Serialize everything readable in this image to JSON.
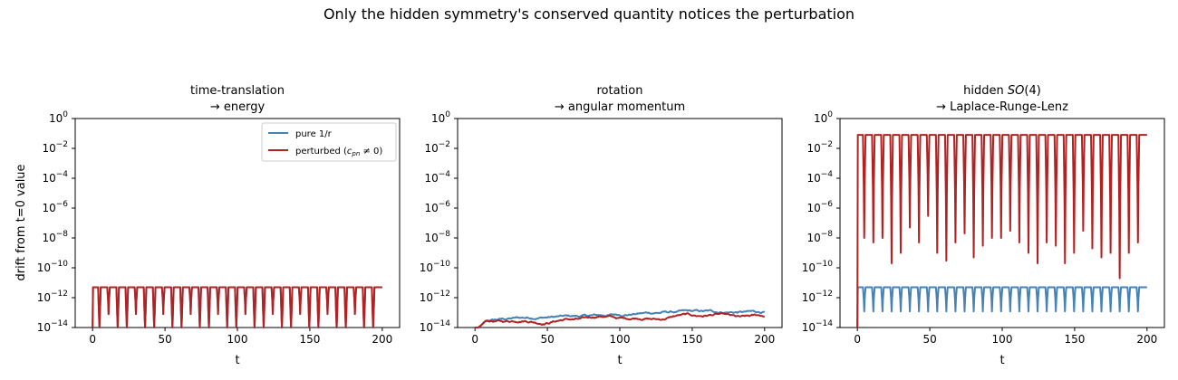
{
  "title": "Only the hidden symmetry's conserved quantity notices the perturbation",
  "colors": {
    "pure": "#4682b4",
    "perturbed": "#b22222"
  },
  "chart_data": [
    {
      "type": "line",
      "title_line1": "time-translation",
      "title_line2": "→ energy",
      "xlabel": "t",
      "ylabel": "drift from t=0 value",
      "yscale": "log",
      "xlim": [
        -12,
        212
      ],
      "ylim": [
        1e-14,
        1
      ],
      "xticks": [
        "0",
        "50",
        "100",
        "150",
        "200"
      ],
      "yticks": [
        "10^0",
        "10^-2",
        "10^-4",
        "10^-6",
        "10^-8",
        "10^-10",
        "10^-12",
        "10^-14"
      ],
      "legend": {
        "placement": "top-right",
        "entries": [
          "pure 1/r",
          "perturbed (c_pn ≠ 0)"
        ]
      },
      "series": [
        {
          "name": "pure 1/r",
          "plateau": 5e-12,
          "dips_to": 1e-14,
          "period": 6.3,
          "t_range": [
            0,
            200
          ]
        },
        {
          "name": "perturbed (c_pn ≠ 0)",
          "plateau": 5e-12,
          "dips_to": 1e-14,
          "period": 6.3,
          "t_range": [
            0,
            200
          ]
        }
      ]
    },
    {
      "type": "line",
      "title_line1": "rotation",
      "title_line2": "→ angular momentum",
      "xlabel": "t",
      "ylabel": "",
      "yscale": "log",
      "xlim": [
        -12,
        212
      ],
      "ylim": [
        1e-14,
        1
      ],
      "xticks": [
        "0",
        "50",
        "100",
        "150",
        "200"
      ],
      "yticks": [
        "10^0",
        "10^-2",
        "10^-4",
        "10^-6",
        "10^-8",
        "10^-10",
        "10^-12",
        "10^-14"
      ],
      "series": [
        {
          "name": "pure 1/r",
          "noise_walk": {
            "start": 1e-14,
            "end": 1.2e-13
          }
        },
        {
          "name": "perturbed (c_pn ≠ 0)",
          "noise_walk": {
            "start": 1e-14,
            "end": 6e-14
          }
        }
      ]
    },
    {
      "type": "line",
      "title_line1": "hidden SO(4)",
      "title_line2": "→ Laplace-Runge-Lenz",
      "xlabel": "t",
      "ylabel": "",
      "yscale": "log",
      "xlim": [
        -12,
        212
      ],
      "ylim": [
        1e-14,
        1
      ],
      "xticks": [
        "0",
        "50",
        "100",
        "150",
        "200"
      ],
      "yticks": [
        "10^0",
        "10^-2",
        "10^-4",
        "10^-6",
        "10^-8",
        "10^-10",
        "10^-12",
        "10^-14"
      ],
      "series": [
        {
          "name": "pure 1/r",
          "plateau": 5e-12,
          "dips_to": 1.2e-13,
          "period": 6.3,
          "t_range": [
            0,
            200
          ]
        },
        {
          "name": "perturbed (c_pn ≠ 0)",
          "plateau": 0.08,
          "period": 6.3,
          "t_range": [
            0,
            200
          ],
          "dip_minima": [
            1e-08,
            5e-09,
            1e-08,
            2e-10,
            1e-09,
            5e-08,
            5e-09,
            3e-07,
            1e-09,
            3e-10,
            5e-09,
            2e-08,
            5e-10,
            3e-09,
            1e-08,
            1e-08,
            3e-08,
            5e-09,
            1e-09,
            2e-10,
            5e-09,
            3e-09,
            2e-10,
            1e-09,
            3e-08,
            2e-09,
            5e-10,
            1e-09,
            2e-11,
            1e-09,
            5e-09,
            5e-10,
            1e-08,
            2e-08,
            5e-10
          ]
        }
      ]
    }
  ]
}
